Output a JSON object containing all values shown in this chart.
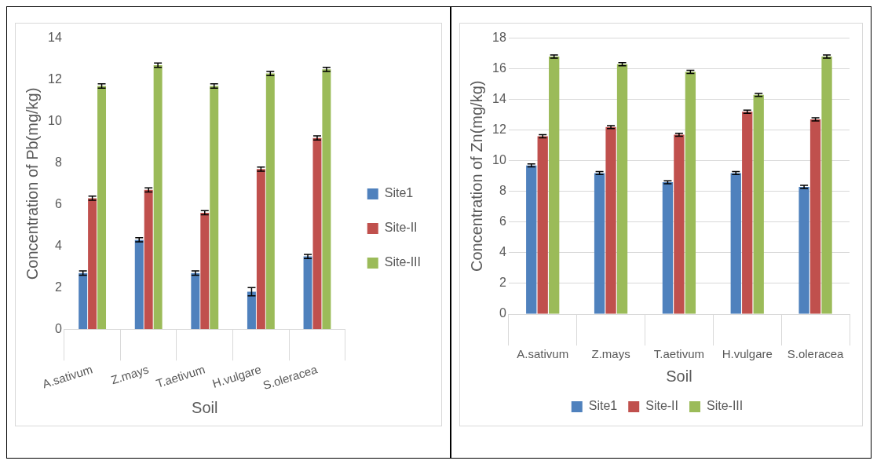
{
  "chart_data": [
    {
      "type": "bar",
      "xlabel": "Soil",
      "ylabel": "Concentration of Pb(mg/kg)",
      "categories": [
        "A.sativum",
        "Z.mays",
        "T.aetivum",
        "H.vulgare",
        "S.oleracea"
      ],
      "series": [
        {
          "name": "Site1",
          "color": "#4f81bd",
          "values": [
            2.7,
            4.3,
            2.7,
            1.8,
            3.5
          ],
          "errors": [
            0.1,
            0.1,
            0.1,
            0.2,
            0.1
          ]
        },
        {
          "name": "Site-II",
          "color": "#c0504d",
          "values": [
            6.3,
            6.7,
            5.6,
            7.7,
            9.2
          ],
          "errors": [
            0.1,
            0.1,
            0.1,
            0.1,
            0.1
          ]
        },
        {
          "name": "Site-III",
          "color": "#9bbb59",
          "values": [
            11.7,
            12.7,
            11.7,
            12.3,
            12.5
          ],
          "errors": [
            0.1,
            0.1,
            0.1,
            0.1,
            0.1
          ]
        }
      ],
      "ylim": [
        0,
        14
      ],
      "yticks": [
        0,
        2,
        4,
        6,
        8,
        10,
        12,
        14
      ],
      "grid": false,
      "legend": "right"
    },
    {
      "type": "bar",
      "xlabel": "Soil",
      "ylabel": "Concentration of Zn(mg/kg)",
      "categories": [
        "A.sativum",
        "Z.mays",
        "T.aetivum",
        "H.vulgare",
        "S.oleracea"
      ],
      "series": [
        {
          "name": "Site1",
          "color": "#4f81bd",
          "values": [
            9.7,
            9.2,
            8.6,
            9.2,
            8.3
          ],
          "errors": [
            0.1,
            0.1,
            0.1,
            0.1,
            0.1
          ]
        },
        {
          "name": "Site-II",
          "color": "#c0504d",
          "values": [
            11.6,
            12.2,
            11.7,
            13.2,
            12.7
          ],
          "errors": [
            0.1,
            0.1,
            0.1,
            0.1,
            0.1
          ]
        },
        {
          "name": "Site-III",
          "color": "#9bbb59",
          "values": [
            16.8,
            16.3,
            15.8,
            14.3,
            16.8
          ],
          "errors": [
            0.1,
            0.1,
            0.1,
            0.1,
            0.1
          ]
        }
      ],
      "ylim": [
        0,
        18
      ],
      "yticks": [
        0,
        2,
        4,
        6,
        8,
        10,
        12,
        14,
        16,
        18
      ],
      "grid": "y",
      "legend": "bottom"
    }
  ]
}
